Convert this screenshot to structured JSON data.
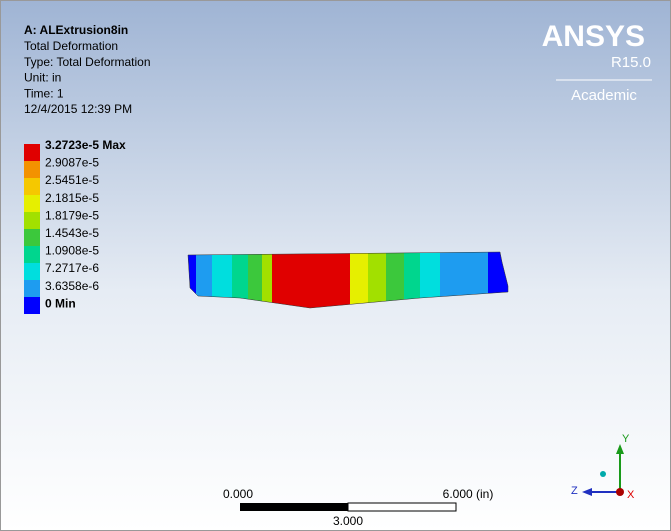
{
  "header": {
    "title": "A: ALExtrusion8in",
    "lines": [
      "Total Deformation",
      "Type: Total Deformation",
      "Unit: in",
      "Time: 1",
      "12/4/2015 12:39 PM"
    ]
  },
  "legend": {
    "labels": [
      "3.2723e-5 Max",
      "2.9087e-5",
      "2.5451e-5",
      "2.1815e-5",
      "1.8179e-5",
      "1.4543e-5",
      "1.0908e-5",
      "7.2717e-6",
      "3.6358e-6",
      "0 Min"
    ]
  },
  "logo": {
    "name": "ANSYS",
    "version": "R15.0",
    "edition": "Academic"
  },
  "scale_bar": {
    "start": "0.000",
    "middle": "3.000",
    "end": "6.000 (in)"
  },
  "triad": {
    "y": "Y",
    "z": "Z",
    "x": "X"
  }
}
